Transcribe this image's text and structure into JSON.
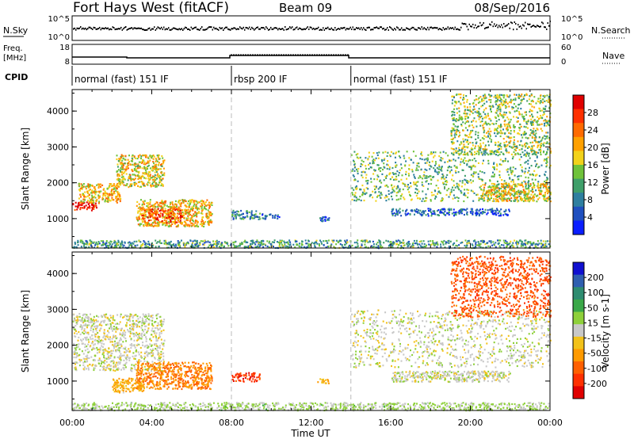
{
  "header": {
    "title": "Fort Hays West (fitACF)",
    "beam": "Beam 09",
    "date": "08/Sep/2016"
  },
  "status_panels": {
    "nsky_label": "N.Sky",
    "nsky_ticks": [
      "10^5",
      "10^0"
    ],
    "nsearch_label": "N.Search",
    "nsearch_ticks": [
      "10^5",
      "10^0"
    ],
    "freq_label": "Freq.",
    "freq_unit": "[MHz]",
    "freq_ticks": [
      "18",
      "8"
    ],
    "nave_label": "Nave",
    "nave_ticks": [
      "60",
      "0"
    ],
    "cpid_label": "CPID",
    "cpid_segments": [
      {
        "label": "normal (fast) 151 IF",
        "start_h": 0,
        "end_h": 8
      },
      {
        "label": "rbsp 200 IF",
        "start_h": 8,
        "end_h": 14
      },
      {
        "label": "normal (fast) 151 IF",
        "start_h": 14,
        "end_h": 24
      }
    ]
  },
  "x_axis": {
    "label": "Time UT",
    "ticks": [
      "00:00",
      "04:00",
      "08:00",
      "12:00",
      "16:00",
      "20:00",
      "00:00"
    ],
    "range_h": [
      0,
      24
    ]
  },
  "y_axis": {
    "label": "Slant Range [km]",
    "ticks": [
      "1000",
      "2000",
      "3000",
      "4000"
    ],
    "range_km": [
      180,
      4600
    ]
  },
  "power_scale": {
    "label": "Power [dB]",
    "ticks": [
      "4",
      "8",
      "12",
      "16",
      "20",
      "24",
      "28"
    ],
    "colors": [
      "#0a1eff",
      "#1f4fbf",
      "#2e7fa0",
      "#3f9f6a",
      "#6fc23a",
      "#f2d21a",
      "#ffa000",
      "#ff6a00",
      "#ff3000",
      "#e00000"
    ]
  },
  "velocity_scale": {
    "label": "Velocity [m s-1]",
    "ticks": [
      "200",
      "100",
      "50",
      "15",
      "-15",
      "-50",
      "-100",
      "-200"
    ],
    "colors": [
      "#1010d0",
      "#2f5fb0",
      "#2e8c70",
      "#3aa848",
      "#8ed03a",
      "#c8c8c8",
      "#f2c21a",
      "#ff9a00",
      "#ff6000",
      "#ff3000",
      "#e00000"
    ]
  },
  "chart_data": [
    {
      "type": "heatmap",
      "panel": "power",
      "title": "",
      "xlabel": "Time UT",
      "ylabel": "Slant Range [km]",
      "xlim_h": [
        0,
        24
      ],
      "ylim_km": [
        180,
        4600
      ],
      "clim_db": [
        0,
        30
      ],
      "scatter_regions": [
        {
          "t0": 0.0,
          "t1": 1.2,
          "r0": 1250,
          "r1": 1500,
          "value": 28
        },
        {
          "t0": 0.3,
          "t1": 2.4,
          "r0": 1450,
          "r1": 2000,
          "value": 18
        },
        {
          "t0": 2.2,
          "t1": 4.6,
          "r0": 1900,
          "r1": 2800,
          "value": 17
        },
        {
          "t0": 3.2,
          "t1": 7.0,
          "r0": 800,
          "r1": 1550,
          "value": 18
        },
        {
          "t0": 3.5,
          "t1": 5.5,
          "r0": 900,
          "r1": 1300,
          "value": 24
        },
        {
          "t0": 8.0,
          "t1": 9.4,
          "r0": 1000,
          "r1": 1250,
          "value": 9
        },
        {
          "t0": 9.5,
          "t1": 10.4,
          "r0": 1000,
          "r1": 1150,
          "value": 6
        },
        {
          "t0": 12.4,
          "t1": 12.9,
          "r0": 950,
          "r1": 1080,
          "value": 5
        },
        {
          "t0": 0.0,
          "t1": 24.0,
          "r0": 200,
          "r1": 420,
          "value": 10
        },
        {
          "t0": 14.0,
          "t1": 24.0,
          "r0": 1500,
          "r1": 2900,
          "value": 12
        },
        {
          "t0": 20.5,
          "t1": 24.0,
          "r0": 1500,
          "r1": 2000,
          "value": 17
        },
        {
          "t0": 16.0,
          "t1": 22.0,
          "r0": 1100,
          "r1": 1300,
          "value": 6
        },
        {
          "t0": 19.0,
          "t1": 24.0,
          "r0": 2800,
          "r1": 4500,
          "value": 14
        }
      ]
    },
    {
      "type": "heatmap",
      "panel": "velocity",
      "title": "",
      "xlabel": "Time UT",
      "ylabel": "Slant Range [km]",
      "xlim_h": [
        0,
        24
      ],
      "ylim_km": [
        180,
        4600
      ],
      "clim_ms": [
        -250,
        250
      ],
      "scatter_regions": [
        {
          "t0": 0.0,
          "t1": 4.6,
          "r0": 1300,
          "r1": 2900,
          "value": 0
        },
        {
          "t0": 2.0,
          "t1": 3.6,
          "r0": 700,
          "r1": 1100,
          "value": -60
        },
        {
          "t0": 3.2,
          "t1": 7.0,
          "r0": 800,
          "r1": 1550,
          "value": -110
        },
        {
          "t0": 8.0,
          "t1": 9.4,
          "r0": 1000,
          "r1": 1250,
          "value": -180
        },
        {
          "t0": 12.3,
          "t1": 12.9,
          "r0": 950,
          "r1": 1080,
          "value": -60
        },
        {
          "t0": 0.0,
          "t1": 24.0,
          "r0": 200,
          "r1": 420,
          "value": 30
        },
        {
          "t0": 14.0,
          "t1": 24.0,
          "r0": 1400,
          "r1": 3000,
          "value": 0
        },
        {
          "t0": 16.0,
          "t1": 22.0,
          "r0": 1000,
          "r1": 1300,
          "value": 0
        },
        {
          "t0": 19.0,
          "t1": 24.0,
          "r0": 2800,
          "r1": 4500,
          "value": -150
        }
      ]
    }
  ]
}
